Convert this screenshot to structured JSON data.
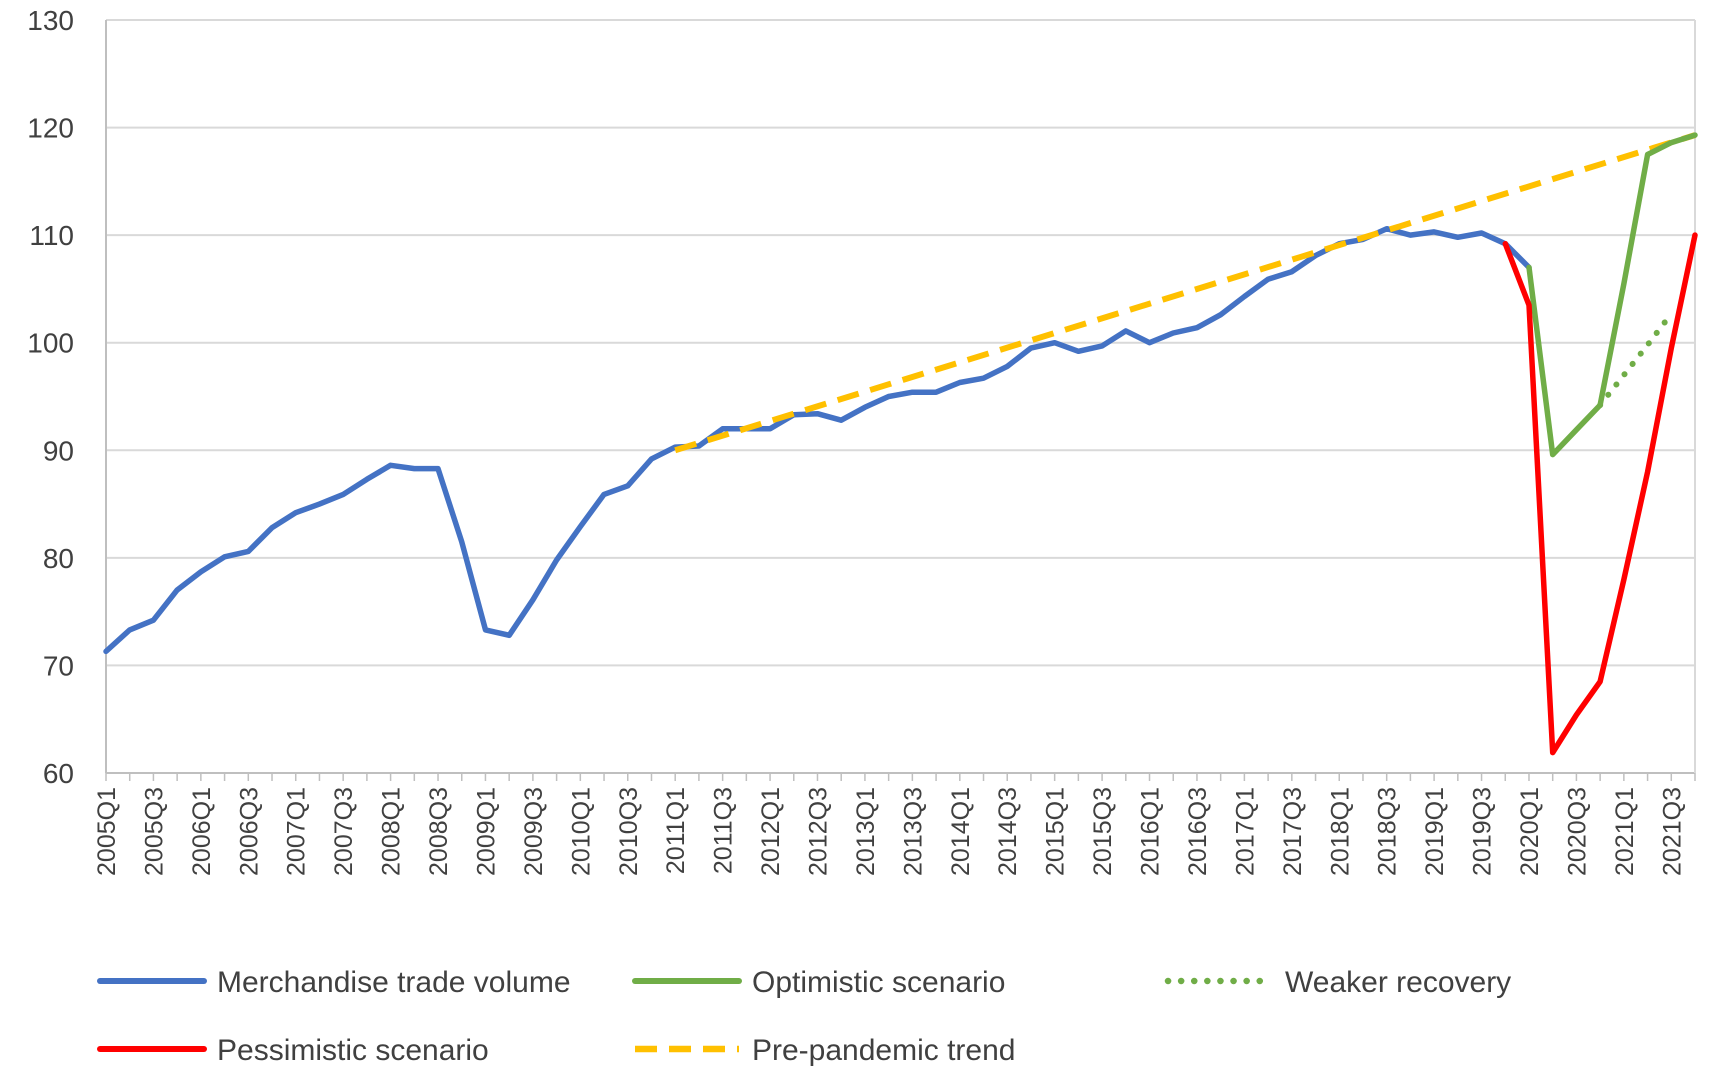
{
  "chart_data": {
    "type": "line",
    "title": "",
    "xlabel": "",
    "ylabel": "",
    "ylim": [
      60,
      130
    ],
    "yticks": [
      "130",
      "120",
      "110",
      "100",
      "90",
      "80",
      "70",
      "60"
    ],
    "grid": "horizontal",
    "legend_position": "bottom",
    "x_tick_labels": [
      "2005Q1",
      "2005Q3",
      "2006Q1",
      "2006Q3",
      "2007Q1",
      "2007Q3",
      "2008Q1",
      "2008Q3",
      "2009Q1",
      "2009Q3",
      "2010Q1",
      "2010Q3",
      "2011Q1",
      "2011Q3",
      "2012Q1",
      "2012Q3",
      "2013Q1",
      "2013Q3",
      "2014Q1",
      "2014Q3",
      "2015Q1",
      "2015Q3",
      "2016Q1",
      "2016Q3",
      "2017Q1",
      "2017Q3",
      "2018Q1",
      "2018Q3",
      "2019Q1",
      "2019Q3",
      "2020Q1",
      "2020Q3",
      "2021Q1",
      "2021Q3"
    ],
    "x": [
      "2005Q1",
      "2005Q2",
      "2005Q3",
      "2005Q4",
      "2006Q1",
      "2006Q2",
      "2006Q3",
      "2006Q4",
      "2007Q1",
      "2007Q2",
      "2007Q3",
      "2007Q4",
      "2008Q1",
      "2008Q2",
      "2008Q3",
      "2008Q4",
      "2009Q1",
      "2009Q2",
      "2009Q3",
      "2009Q4",
      "2010Q1",
      "2010Q2",
      "2010Q3",
      "2010Q4",
      "2011Q1",
      "2011Q2",
      "2011Q3",
      "2011Q4",
      "2012Q1",
      "2012Q2",
      "2012Q3",
      "2012Q4",
      "2013Q1",
      "2013Q2",
      "2013Q3",
      "2013Q4",
      "2014Q1",
      "2014Q2",
      "2014Q3",
      "2014Q4",
      "2015Q1",
      "2015Q2",
      "2015Q3",
      "2015Q4",
      "2016Q1",
      "2016Q2",
      "2016Q3",
      "2016Q4",
      "2017Q1",
      "2017Q2",
      "2017Q3",
      "2017Q4",
      "2018Q1",
      "2018Q2",
      "2018Q3",
      "2018Q4",
      "2019Q1",
      "2019Q2",
      "2019Q3",
      "2019Q4",
      "2020Q1",
      "2020Q2",
      "2020Q3",
      "2020Q4",
      "2021Q1",
      "2021Q2",
      "2021Q3",
      "2021Q4"
    ],
    "series": [
      {
        "name": "Merchandise trade volume",
        "color": "#4472c4",
        "dash": "solid",
        "points": [
          [
            "2005Q1",
            71.3
          ],
          [
            "2005Q2",
            73.3
          ],
          [
            "2005Q3",
            74.2
          ],
          [
            "2005Q4",
            77.0
          ],
          [
            "2006Q1",
            78.7
          ],
          [
            "2006Q2",
            80.1
          ],
          [
            "2006Q3",
            80.6
          ],
          [
            "2006Q4",
            82.8
          ],
          [
            "2007Q1",
            84.2
          ],
          [
            "2007Q2",
            85.0
          ],
          [
            "2007Q3",
            85.9
          ],
          [
            "2007Q4",
            87.3
          ],
          [
            "2008Q1",
            88.6
          ],
          [
            "2008Q2",
            88.3
          ],
          [
            "2008Q3",
            88.3
          ],
          [
            "2008Q4",
            81.5
          ],
          [
            "2009Q1",
            73.3
          ],
          [
            "2009Q2",
            72.8
          ],
          [
            "2009Q3",
            76.1
          ],
          [
            "2009Q4",
            79.8
          ],
          [
            "2010Q1",
            82.9
          ],
          [
            "2010Q2",
            85.9
          ],
          [
            "2010Q3",
            86.7
          ],
          [
            "2010Q4",
            89.2
          ],
          [
            "2011Q1",
            90.3
          ],
          [
            "2011Q2",
            90.4
          ],
          [
            "2011Q3",
            92.0
          ],
          [
            "2011Q4",
            92.0
          ],
          [
            "2012Q1",
            92.0
          ],
          [
            "2012Q2",
            93.3
          ],
          [
            "2012Q3",
            93.4
          ],
          [
            "2012Q4",
            92.8
          ],
          [
            "2013Q1",
            94.0
          ],
          [
            "2013Q2",
            95.0
          ],
          [
            "2013Q3",
            95.4
          ],
          [
            "2013Q4",
            95.4
          ],
          [
            "2014Q1",
            96.3
          ],
          [
            "2014Q2",
            96.7
          ],
          [
            "2014Q3",
            97.8
          ],
          [
            "2014Q4",
            99.5
          ],
          [
            "2015Q1",
            100.0
          ],
          [
            "2015Q2",
            99.2
          ],
          [
            "2015Q3",
            99.7
          ],
          [
            "2015Q4",
            101.1
          ],
          [
            "2016Q1",
            100.0
          ],
          [
            "2016Q2",
            100.9
          ],
          [
            "2016Q3",
            101.4
          ],
          [
            "2016Q4",
            102.6
          ],
          [
            "2017Q1",
            104.3
          ],
          [
            "2017Q2",
            105.9
          ],
          [
            "2017Q3",
            106.6
          ],
          [
            "2017Q4",
            108.1
          ],
          [
            "2018Q1",
            109.2
          ],
          [
            "2018Q2",
            109.6
          ],
          [
            "2018Q3",
            110.6
          ],
          [
            "2018Q4",
            110.0
          ],
          [
            "2019Q1",
            110.3
          ],
          [
            "2019Q2",
            109.8
          ],
          [
            "2019Q3",
            110.2
          ],
          [
            "2019Q4",
            109.2
          ],
          [
            "2020Q1",
            107.0
          ]
        ]
      },
      {
        "name": "Optimistic scenario",
        "color": "#70ad47",
        "dash": "solid",
        "points": [
          [
            "2020Q1",
            107.0
          ],
          [
            "2020Q2",
            89.6
          ],
          [
            "2020Q3",
            91.9
          ],
          [
            "2020Q4",
            94.2
          ],
          [
            "2021Q1",
            105.5
          ],
          [
            "2021Q2",
            117.5
          ],
          [
            "2021Q3",
            118.6
          ],
          [
            "2021Q4",
            119.3
          ]
        ]
      },
      {
        "name": "Weaker recovery",
        "color": "#70ad47",
        "dash": "dotted",
        "points": [
          [
            "2020Q4",
            94.2
          ],
          [
            "2021Q1",
            97.0
          ],
          [
            "2021Q2",
            99.8
          ],
          [
            "2021Q3",
            102.7
          ]
        ]
      },
      {
        "name": "Pessimistic scenario",
        "color": "#ff0000",
        "dash": "solid",
        "points": [
          [
            "2019Q4",
            109.2
          ],
          [
            "2020Q1",
            103.5
          ],
          [
            "2020Q2",
            61.9
          ],
          [
            "2020Q3",
            65.4
          ],
          [
            "2020Q4",
            68.5
          ],
          [
            "2021Q1",
            78.0
          ],
          [
            "2021Q2",
            88.0
          ],
          [
            "2021Q3",
            99.5
          ],
          [
            "2021Q4",
            110.0
          ]
        ]
      },
      {
        "name": "Pre-pandemic trend",
        "color": "#ffc000",
        "dash": "dashed",
        "points": [
          [
            "2011Q1",
            90.0
          ],
          [
            "2021Q4",
            119.3
          ]
        ]
      }
    ],
    "legend": [
      {
        "label": "Merchandise trade volume",
        "color": "#4472c4",
        "dash": "solid"
      },
      {
        "label": "Optimistic scenario",
        "color": "#70ad47",
        "dash": "solid"
      },
      {
        "label": "Weaker recovery",
        "color": "#70ad47",
        "dash": "dotted"
      },
      {
        "label": "Pessimistic scenario",
        "color": "#ff0000",
        "dash": "solid"
      },
      {
        "label": "Pre-pandemic trend",
        "color": "#ffc000",
        "dash": "dashed"
      }
    ]
  }
}
